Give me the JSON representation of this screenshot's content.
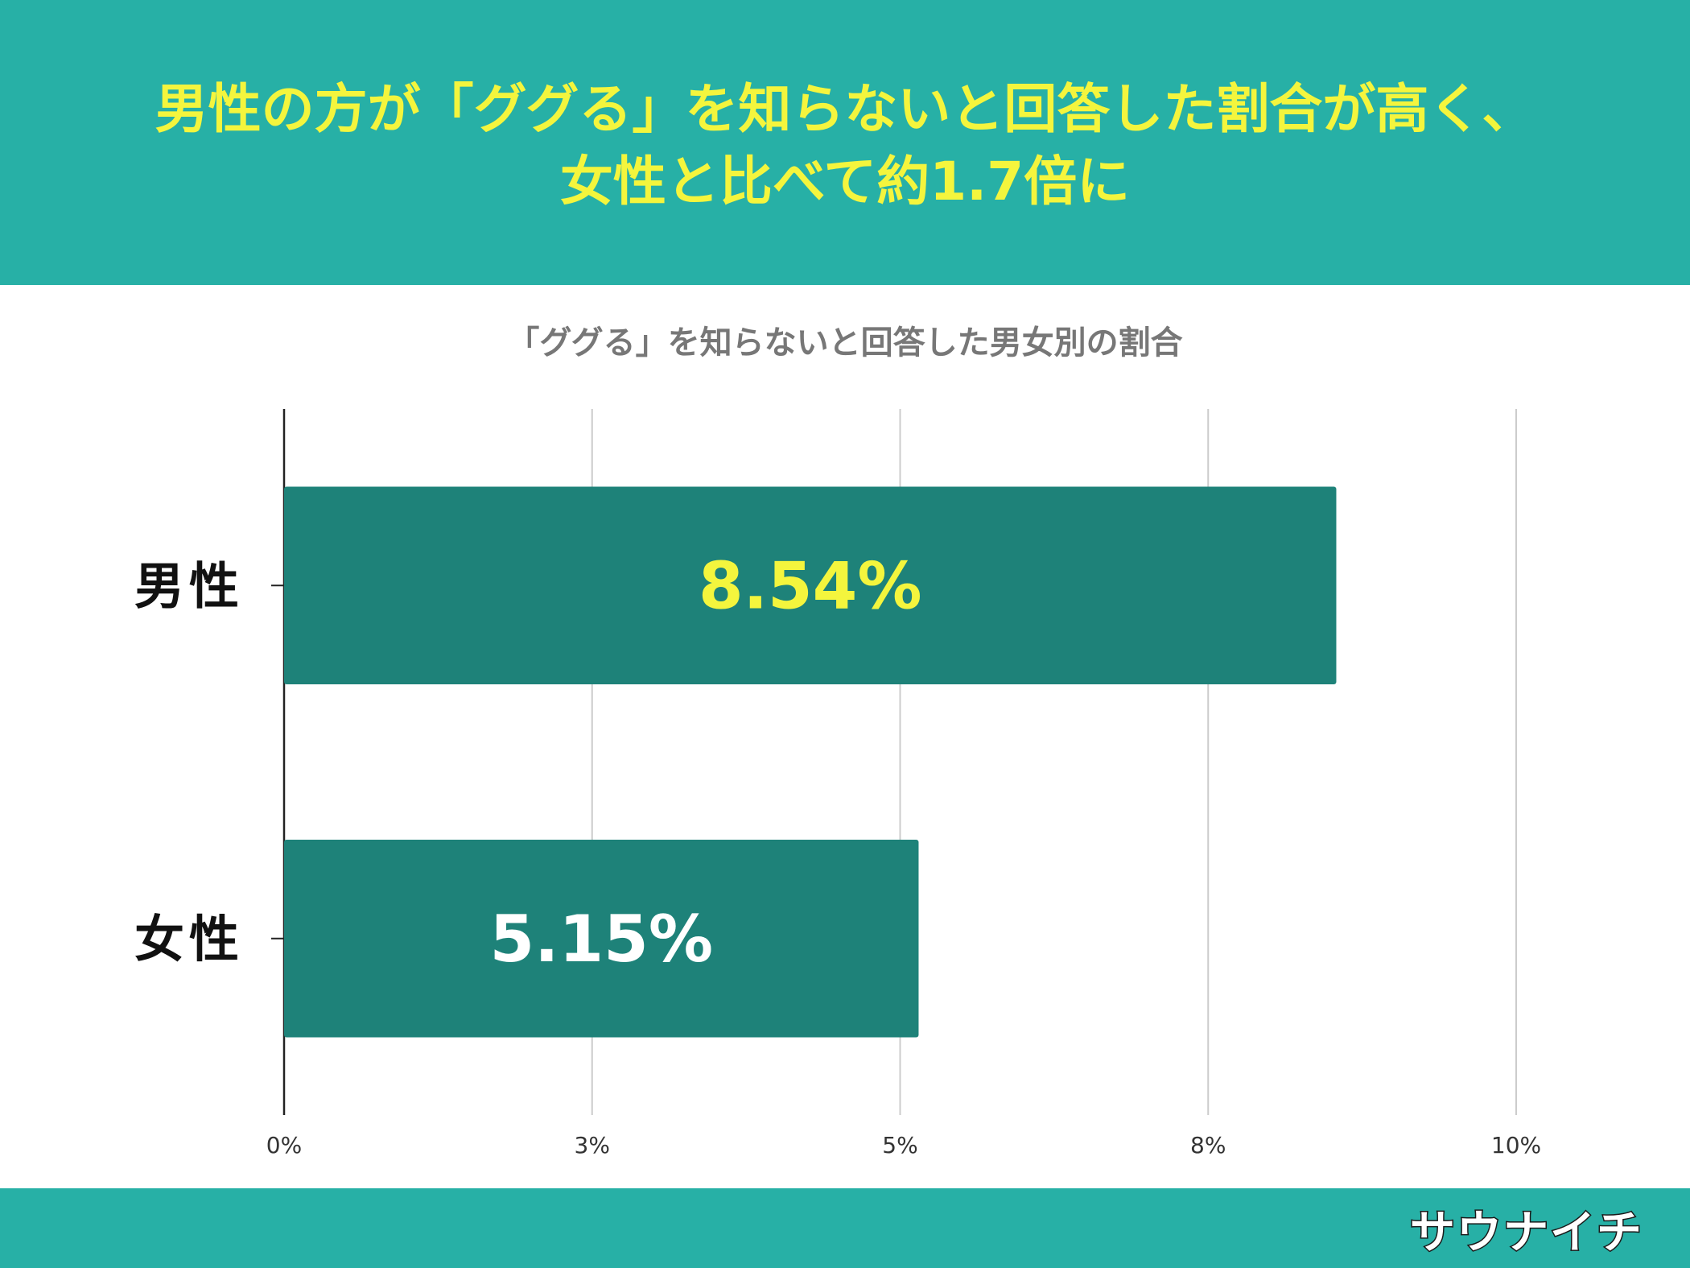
{
  "header": {
    "line1": "男性の方が「ググる」を知らないと回答した割合が高く、",
    "line2": "女性と比べて約1.7倍に",
    "text_color": "#f4f53d",
    "background": "#27b0a6"
  },
  "footer": {
    "logo_text": "サウナイチ",
    "logo_icon": "mascot-icon"
  },
  "chart_data": {
    "type": "bar",
    "orientation": "horizontal",
    "title": "「ググる」を知らないと回答した男女別の割合",
    "categories": [
      "男性",
      "女性"
    ],
    "values": [
      8.54,
      5.15
    ],
    "value_labels": [
      "8.54%",
      "5.15%"
    ],
    "value_label_colors": [
      "#f4f53d",
      "#ffffff"
    ],
    "bar_color": "#1e8279",
    "xlim": [
      0,
      10
    ],
    "x_ticks": [
      0,
      2.5,
      5,
      7.5,
      10
    ],
    "x_tick_labels": [
      "0%",
      "3%",
      "5%",
      "8%",
      "10%"
    ],
    "grid": true,
    "xlabel": "",
    "ylabel": ""
  }
}
